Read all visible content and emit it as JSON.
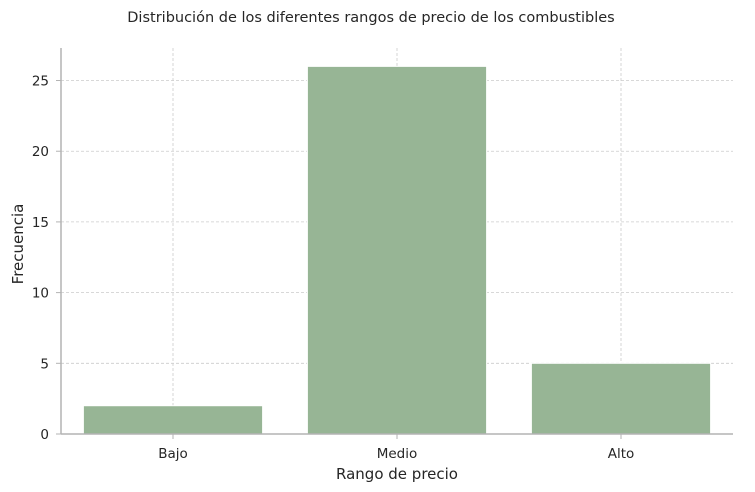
{
  "chart_data": {
    "type": "bar",
    "title": "Distribución de los diferentes rangos de precio de los combustibles",
    "xlabel": "Rango de precio",
    "ylabel": "Frecuencia",
    "categories": [
      "Bajo",
      "Medio",
      "Alto"
    ],
    "values": [
      2,
      26,
      5
    ],
    "ylim": [
      0,
      27.3
    ],
    "yticks": [
      0,
      5,
      10,
      15,
      20,
      25
    ],
    "grid": true,
    "bar_color": "#97b595"
  }
}
